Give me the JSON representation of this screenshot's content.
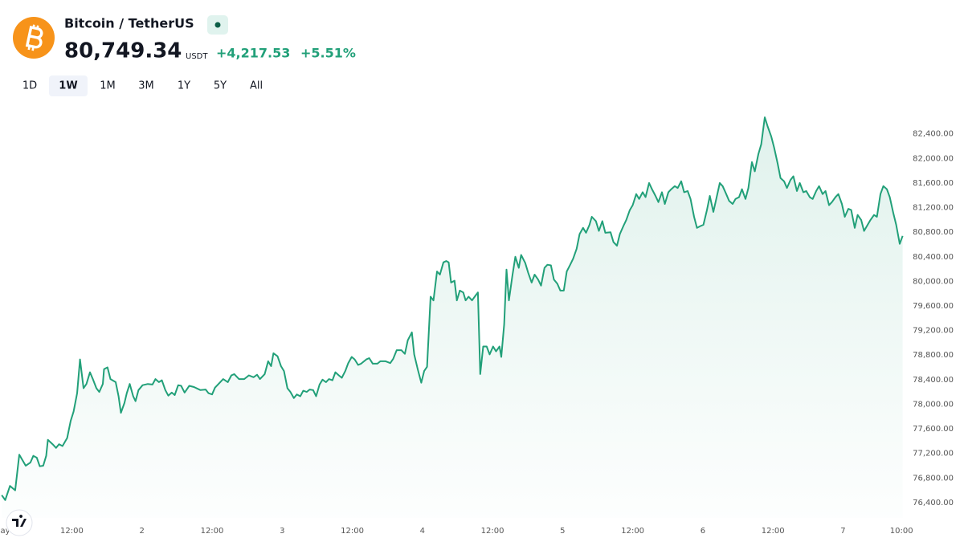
{
  "header": {
    "symbol": "Bitcoin / TetherUS",
    "price": "80,749.34",
    "currency": "USDT",
    "change": "+4,217.53",
    "change_percent": "+5.51%"
  },
  "ranges": [
    "1D",
    "1W",
    "1M",
    "3M",
    "1Y",
    "5Y",
    "All"
  ],
  "active_range": 1,
  "chart_data": {
    "type": "area",
    "color": "#22a079",
    "x": [
      0,
      0.6,
      1.4,
      2.3,
      3.0,
      4.1,
      4.9,
      5.4,
      6.0,
      6.5,
      7.1,
      7.6,
      7.9,
      8.7,
      9.3,
      9.8,
      10.4,
      11.2,
      11.8,
      12.3,
      12.9,
      13.4,
      14.0,
      14.5,
      15.1,
      15.6,
      16.2,
      16.7,
      17.3,
      17.5,
      18.1,
      18.6,
      19.5,
      20.0,
      20.4,
      21.0,
      21.4,
      21.9,
      22.5,
      22.9,
      23.4,
      24.1,
      25.0,
      25.8,
      26.3,
      26.9,
      27.4,
      28.0,
      28.5,
      29.1,
      29.6,
      30.2,
      30.7,
      31.3,
      32.1,
      32.9,
      34.0,
      34.9,
      35.4,
      36.0,
      36.5,
      37.1,
      37.9,
      38.7,
      39.3,
      39.8,
      40.6,
      41.5,
      42.3,
      43.1,
      43.7,
      44.2,
      45.0,
      45.6,
      46.1,
      46.5,
      47.2,
      47.8,
      48.3,
      48.9,
      49.4,
      50.0,
      50.5,
      51.1,
      51.6,
      52.2,
      52.7,
      53.3,
      53.8,
      54.4,
      54.9,
      55.5,
      56.0,
      56.6,
      57.1,
      57.7,
      58.2,
      58.8,
      59.3,
      59.9,
      60.4,
      61.0,
      61.5,
      62.4,
      62.9,
      63.5,
      64.3,
      64.8,
      65.7,
      66.5,
      67.0,
      67.6,
      68.4,
      69.0,
      69.5,
      70.2,
      70.6,
      71.2,
      71.8,
      72.3,
      72.8,
      73.4,
      73.9,
      74.5,
      75.0,
      75.6,
      76.1,
      76.5,
      76.9,
      77.5,
      77.9,
      78.4,
      79.0,
      79.4,
      79.9,
      80.5,
      81.1,
      81.5,
      81.9,
      82.4,
      83.0,
      83.5,
      84.1,
      84.6,
      85.2,
      85.5,
      86.0,
      86.4,
      86.8,
      87.4,
      87.9,
      88.5,
      88.9,
      89.6,
      90.1,
      90.7,
      91.2,
      91.8,
      92.3,
      92.9,
      93.4,
      94.0,
      94.5,
      95.1,
      95.6,
      96.2,
      96.7,
      97.3,
      97.8,
      98.4,
      98.9,
      99.5,
      100.0,
      100.6,
      101.0,
      101.7,
      102.2,
      102.8,
      103.3,
      104.2,
      104.7,
      105.3,
      105.8,
      106.4,
      106.9,
      107.5,
      108.0,
      108.6,
      109.1,
      109.7,
      110.2,
      110.8,
      111.3,
      111.9,
      112.4,
      113.0,
      113.5,
      114.1,
      114.6,
      115.2,
      115.7,
      116.3,
      116.8,
      117.4,
      117.9,
      118.5,
      119.0,
      119.6,
      120.1,
      120.7,
      121.2,
      121.8,
      122.3,
      122.9,
      123.4,
      124.0,
      124.5,
      125.1,
      125.6,
      126.2,
      126.7,
      127.3,
      127.8,
      128.4,
      128.9,
      129.5,
      130.0,
      130.6,
      131.1,
      131.7,
      132.2,
      132.8,
      133.3,
      133.9,
      134.4,
      135.0,
      135.5,
      136.1,
      136.6,
      137.2,
      137.7,
      138.3,
      138.8,
      139.4,
      139.9,
      140.5,
      141.0,
      141.6,
      142.1,
      142.7,
      143.2,
      143.8,
      144.3,
      144.9,
      145.4,
      146.0,
      146.5,
      147.1,
      147.6,
      148.2,
      148.7,
      149.3,
      149.8,
      150.4,
      150.9,
      151.5,
      152.0,
      152.6,
      153.1,
      153.7,
      154.2
    ],
    "values": [
      76520,
      76440,
      76670,
      76600,
      77180,
      77000,
      77050,
      77160,
      77130,
      76990,
      77000,
      77160,
      77420,
      77350,
      77290,
      77350,
      77320,
      77450,
      77730,
      77880,
      78180,
      78730,
      78260,
      78330,
      78520,
      78410,
      78260,
      78200,
      78330,
      78570,
      78600,
      78410,
      78360,
      78130,
      77860,
      78020,
      78180,
      78330,
      78130,
      78050,
      78230,
      78310,
      78330,
      78320,
      78410,
      78360,
      78390,
      78230,
      78140,
      78190,
      78150,
      78310,
      78300,
      78190,
      78300,
      78280,
      78230,
      78240,
      78180,
      78160,
      78270,
      78330,
      78410,
      78360,
      78470,
      78490,
      78410,
      78410,
      78470,
      78440,
      78480,
      78410,
      78490,
      78700,
      78620,
      78830,
      78780,
      78620,
      78540,
      78260,
      78200,
      78100,
      78160,
      78130,
      78220,
      78200,
      78240,
      78230,
      78130,
      78320,
      78400,
      78360,
      78410,
      78390,
      78520,
      78470,
      78430,
      78540,
      78670,
      78770,
      78730,
      78640,
      78660,
      78730,
      78750,
      78660,
      78660,
      78700,
      78700,
      78670,
      78740,
      78880,
      78880,
      78820,
      79040,
      79170,
      78810,
      78570,
      78350,
      78540,
      78610,
      79750,
      79690,
      80160,
      80110,
      80310,
      80330,
      80310,
      79980,
      80010,
      79690,
      79850,
      79820,
      79690,
      79750,
      79690,
      79770,
      79820,
      78490,
      78940,
      78940,
      78810,
      78940,
      78860,
      78940,
      78770,
      79300,
      80190,
      79690,
      80090,
      80400,
      80220,
      80430,
      80300,
      80140,
      79980,
      80110,
      80030,
      79930,
      80220,
      80270,
      80260,
      80030,
      79960,
      79850,
      79850,
      80160,
      80270,
      80370,
      80530,
      80770,
      80870,
      80790,
      80920,
      81050,
      80980,
      80820,
      80980,
      80790,
      80800,
      80640,
      80580,
      80770,
      80900,
      81000,
      81160,
      81240,
      81420,
      81340,
      81450,
      81370,
      81600,
      81500,
      81390,
      81290,
      81450,
      81260,
      81450,
      81500,
      81550,
      81520,
      81630,
      81450,
      81470,
      81340,
      81050,
      80870,
      80900,
      80920,
      81160,
      81390,
      81130,
      81340,
      81600,
      81550,
      81420,
      81310,
      81260,
      81340,
      81370,
      81500,
      81340,
      81520,
      81940,
      81790,
      82070,
      82230,
      82670,
      82520,
      82360,
      82180,
      81920,
      81680,
      81630,
      81520,
      81650,
      81710,
      81470,
      81600,
      81450,
      81470,
      81370,
      81340,
      81470,
      81550,
      81420,
      81470,
      81240,
      81290,
      81370,
      81420,
      81260,
      81050,
      81180,
      81160,
      80870,
      81080,
      81000,
      80820,
      80920,
      81000,
      81080,
      81050,
      81420,
      81550,
      81500,
      81370,
      81110,
      80920,
      80610,
      80740
    ],
    "xlim": [
      -0.3,
      154.8
    ],
    "xticks": [
      {
        "value": 0,
        "label": "May"
      },
      {
        "value": 12,
        "label": "12:00"
      },
      {
        "value": 24,
        "label": "2"
      },
      {
        "value": 36,
        "label": "12:00"
      },
      {
        "value": 48,
        "label": "3"
      },
      {
        "value": 60,
        "label": "12:00"
      },
      {
        "value": 72,
        "label": "4"
      },
      {
        "value": 84,
        "label": "12:00"
      },
      {
        "value": 96,
        "label": "5"
      },
      {
        "value": 108,
        "label": "12:00"
      },
      {
        "value": 120,
        "label": "6"
      },
      {
        "value": 132,
        "label": "12:00"
      },
      {
        "value": 144,
        "label": "7"
      },
      {
        "value": 154,
        "label": "10:00"
      }
    ],
    "ylim": [
      76150,
      82880
    ],
    "yticks": [
      {
        "value": 76400,
        "label": "76,400.00"
      },
      {
        "value": 76800,
        "label": "76,800.00"
      },
      {
        "value": 77200,
        "label": "77,200.00"
      },
      {
        "value": 77600,
        "label": "77,600.00"
      },
      {
        "value": 78000,
        "label": "78,000.00"
      },
      {
        "value": 78400,
        "label": "78,400.00"
      },
      {
        "value": 78800,
        "label": "78,800.00"
      },
      {
        "value": 79200,
        "label": "79,200.00"
      },
      {
        "value": 79600,
        "label": "79,600.00"
      },
      {
        "value": 80000,
        "label": "80,000.00"
      },
      {
        "value": 80400,
        "label": "80,400.00"
      },
      {
        "value": 80800,
        "label": "80,800.00"
      },
      {
        "value": 81200,
        "label": "81,200.00"
      },
      {
        "value": 81600,
        "label": "81,600.00"
      },
      {
        "value": 82000,
        "label": "82,000.00"
      },
      {
        "value": 82400,
        "label": "82,400.00"
      }
    ],
    "grid": false
  }
}
